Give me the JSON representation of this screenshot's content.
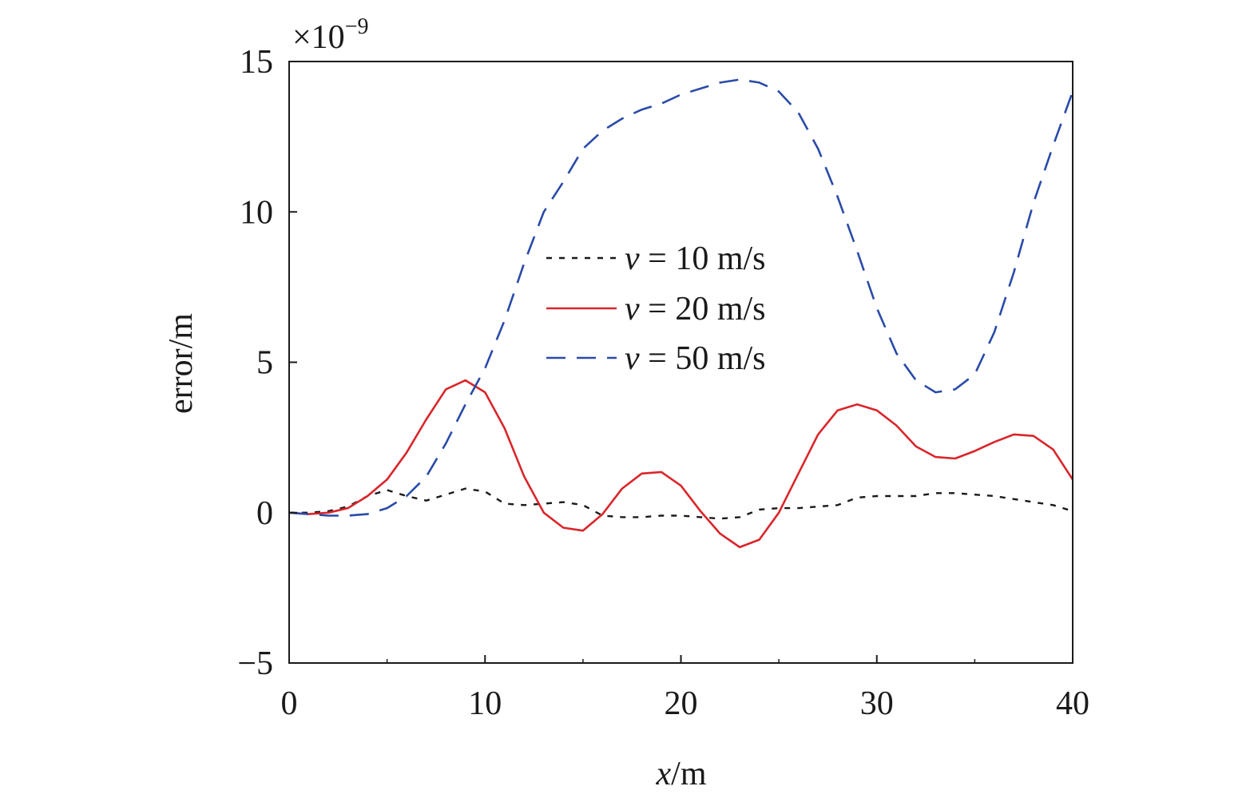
{
  "chart_data": {
    "type": "line",
    "xlabel": {
      "var": "x",
      "unit": "/m"
    },
    "ylabel": "error/m",
    "y_multiplier": {
      "prefix": "×10",
      "exponent": "−9"
    },
    "xlim": [
      0,
      40
    ],
    "ylim": [
      -5,
      15
    ],
    "x_ticks": [
      0,
      10,
      20,
      30,
      40
    ],
    "x_tick_labels": [
      "0",
      "10",
      "20",
      "30",
      "40"
    ],
    "y_ticks": [
      -5,
      0,
      5,
      10,
      15
    ],
    "y_tick_labels": [
      "−5",
      "0",
      "5",
      "10",
      "15"
    ],
    "grid": false,
    "legend_position": "center",
    "series": [
      {
        "name": "v = 10 m/s",
        "legend_var": "v",
        "legend_rest": " = 10 m/s",
        "color": "#1a1a1a",
        "style": "dotted",
        "x": [
          0,
          1,
          2,
          3,
          4,
          5,
          6,
          7,
          8,
          9,
          10,
          11,
          12,
          13,
          14,
          15,
          16,
          17,
          18,
          19,
          20,
          21,
          22,
          23,
          24,
          25,
          26,
          27,
          28,
          29,
          30,
          31,
          32,
          33,
          34,
          35,
          36,
          37,
          38,
          39,
          40
        ],
        "y": [
          0,
          0,
          0.05,
          0.2,
          0.55,
          0.75,
          0.55,
          0.4,
          0.6,
          0.8,
          0.7,
          0.3,
          0.25,
          0.3,
          0.35,
          0.25,
          -0.1,
          -0.15,
          -0.15,
          -0.1,
          -0.1,
          -0.15,
          -0.2,
          -0.15,
          0.1,
          0.15,
          0.15,
          0.2,
          0.25,
          0.5,
          0.55,
          0.55,
          0.55,
          0.65,
          0.65,
          0.6,
          0.55,
          0.45,
          0.35,
          0.25,
          0.05
        ]
      },
      {
        "name": "v = 20 m/s",
        "legend_var": "v",
        "legend_rest": " = 20 m/s",
        "color": "#d9262b",
        "style": "solid",
        "x": [
          0,
          1,
          2,
          3,
          4,
          5,
          6,
          7,
          8,
          9,
          10,
          11,
          12,
          13,
          14,
          15,
          16,
          17,
          18,
          19,
          20,
          21,
          22,
          23,
          24,
          25,
          26,
          27,
          28,
          29,
          30,
          31,
          32,
          33,
          34,
          35,
          36,
          37,
          38,
          39,
          40
        ],
        "y": [
          0,
          -0.05,
          0,
          0.15,
          0.55,
          1.1,
          2.0,
          3.1,
          4.1,
          4.4,
          4.0,
          2.8,
          1.2,
          0,
          -0.5,
          -0.6,
          -0.05,
          0.8,
          1.3,
          1.35,
          0.9,
          0.05,
          -0.7,
          -1.15,
          -0.9,
          0,
          1.3,
          2.6,
          3.4,
          3.6,
          3.4,
          2.9,
          2.2,
          1.85,
          1.8,
          2.05,
          2.35,
          2.6,
          2.55,
          2.1,
          1.1
        ]
      },
      {
        "name": "v = 50 m/s",
        "legend_var": "v",
        "legend_rest": " = 50 m/s",
        "color": "#2a4ba8",
        "style": "dashed",
        "x": [
          0,
          1,
          2,
          3,
          4,
          5,
          6,
          7,
          8,
          9,
          10,
          11,
          12,
          13,
          14,
          15,
          16,
          17,
          18,
          19,
          20,
          21,
          22,
          23,
          24,
          25,
          26,
          27,
          28,
          29,
          30,
          31,
          32,
          33,
          34,
          35,
          36,
          37,
          38,
          39,
          40
        ],
        "y": [
          0,
          -0.05,
          -0.1,
          -0.1,
          -0.05,
          0.15,
          0.55,
          1.2,
          2.3,
          3.6,
          4.8,
          6.4,
          8.3,
          10.0,
          11.0,
          12.1,
          12.7,
          13.1,
          13.4,
          13.6,
          13.9,
          14.1,
          14.3,
          14.4,
          14.3,
          14.0,
          13.3,
          12.1,
          10.5,
          8.7,
          6.8,
          5.3,
          4.4,
          4.0,
          4.1,
          4.6,
          6.0,
          8.0,
          10.3,
          12.2,
          14.0
        ]
      }
    ]
  }
}
